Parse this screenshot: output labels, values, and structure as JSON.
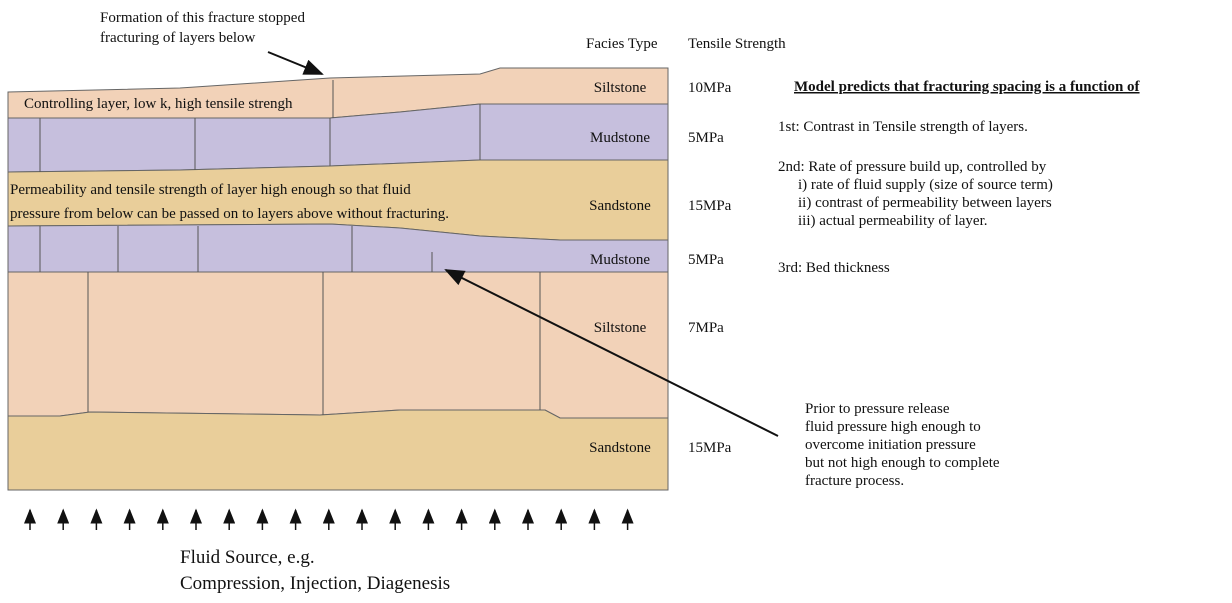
{
  "annotation_top": [
    "Formation of this fracture stopped",
    "fracturing of layers below"
  ],
  "headers": {
    "facies_type": "Facies Type",
    "tensile_strength": "Tensile Strength"
  },
  "layers": [
    {
      "facies": "Siltstone",
      "strength": "10MPa",
      "note": [
        "Controlling layer, low k, high tensile strengh"
      ]
    },
    {
      "facies": "Mudstone",
      "strength": "5MPa"
    },
    {
      "facies": "Sandstone",
      "strength": "15MPa",
      "note": [
        "Permeability and tensile strength of layer high enough so that fluid",
        "pressure from below can be passed on to layers above without fracturing."
      ]
    },
    {
      "facies": "Mudstone",
      "strength": "5MPa"
    },
    {
      "facies": "Siltstone",
      "strength": "7MPa"
    },
    {
      "facies": "Sandstone",
      "strength": "15MPa"
    }
  ],
  "model": {
    "title": "Model predicts that fracturing spacing is a function of",
    "items": [
      "1st: Contrast in Tensile strength of layers.",
      "2nd: Rate of pressure build up, controlled by",
      "i)  rate of fluid supply (size of source term)",
      "ii) contrast of permeability between layers",
      "iii) actual permeability of layer.",
      "3rd: Bed thickness"
    ]
  },
  "annotation_right": [
    "Prior to pressure release",
    "fluid pressure high enough to",
    "overcome initiation pressure",
    "but not high enough to complete",
    "fracture process."
  ],
  "source": [
    "Fluid Source, e.g.",
    "Compression, Injection, Diagenesis"
  ]
}
